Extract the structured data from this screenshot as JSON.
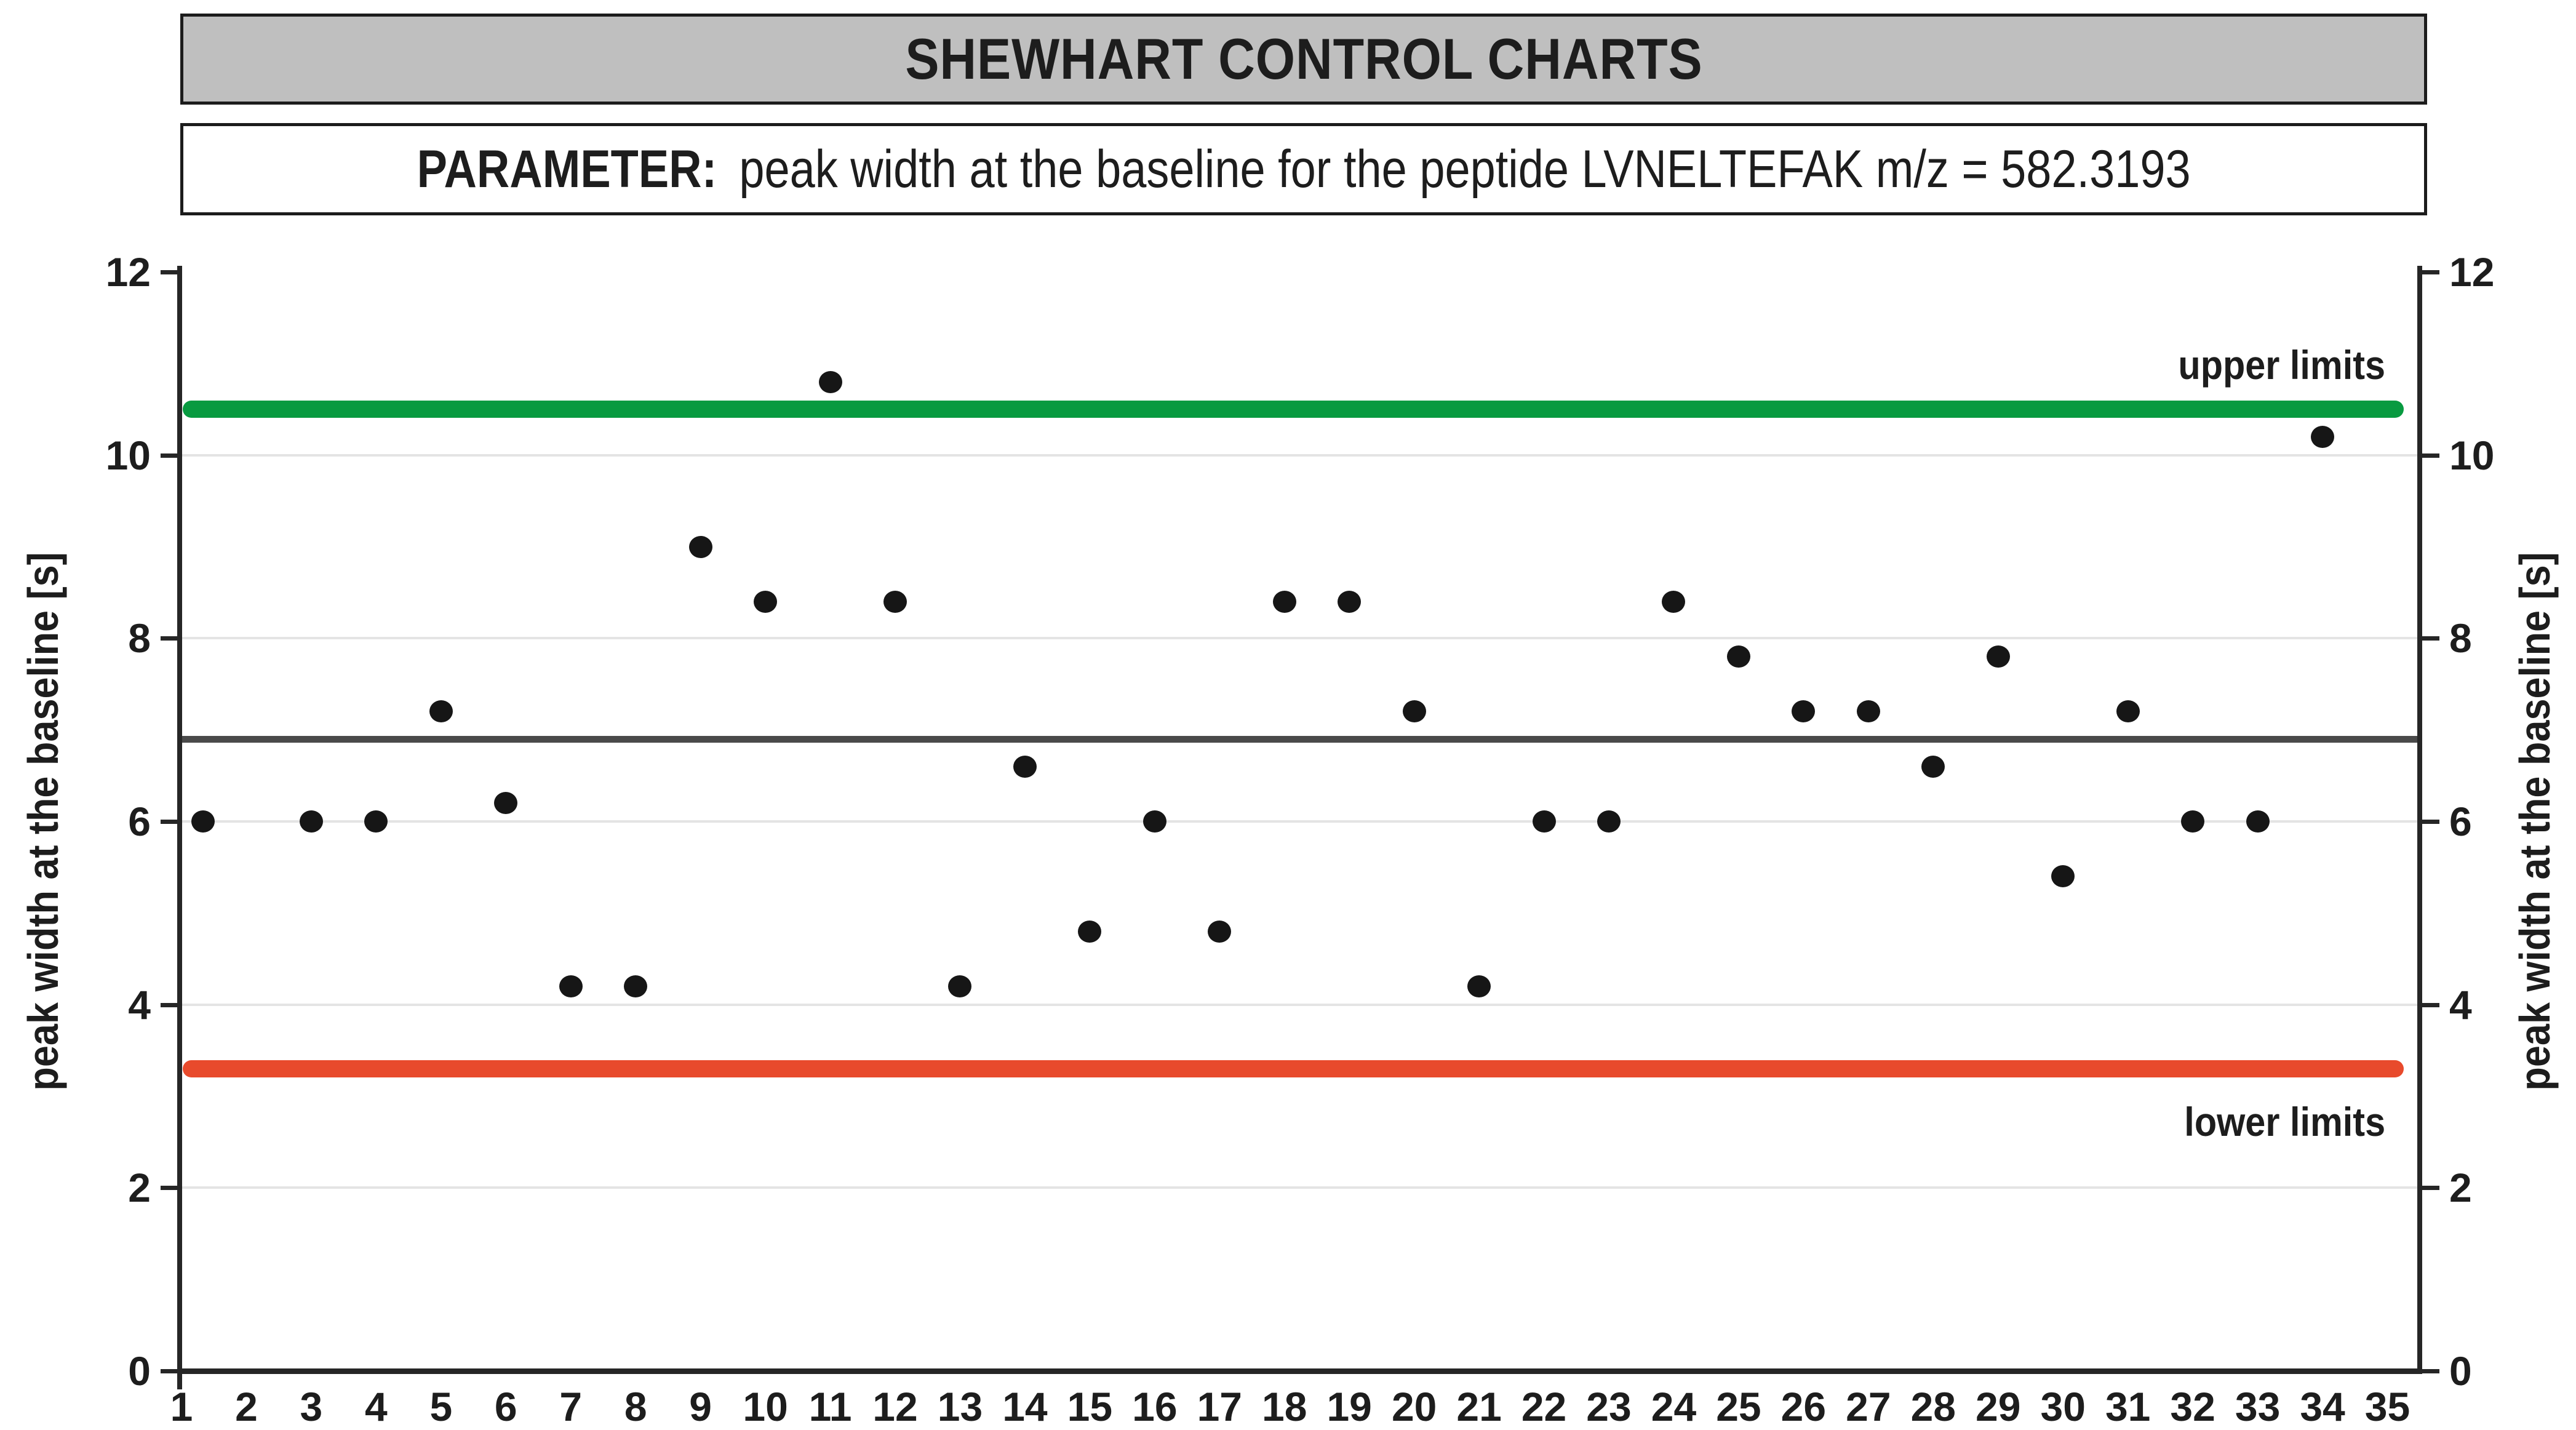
{
  "header": {
    "title": "SHEWHART CONTROL CHARTS",
    "parameter_label": "PARAMETER:",
    "parameter_text": "peak width at the baseline for the peptide LVNELTEFAK m/z = 582.3193"
  },
  "chart_data": {
    "type": "scatter",
    "title": "SHEWHART CONTROL CHARTS",
    "subtitle": "PARAMETER: peak width at the baseline for the peptide LVNELTEFAK m/z = 582.3193",
    "ylabel_left": "peak width at the baseline [s]",
    "ylabel_right": "peak width at the baseline [s]",
    "xlabel": "",
    "ylim": [
      0,
      12
    ],
    "xlim": [
      1,
      35.46
    ],
    "y_ticks": [
      0,
      2,
      4,
      6,
      8,
      10,
      12
    ],
    "y_gridlines": [
      2,
      4,
      6,
      8,
      10
    ],
    "x_ticks": [
      1,
      2,
      3,
      4,
      5,
      6,
      7,
      8,
      9,
      10,
      11,
      12,
      13,
      14,
      15,
      16,
      17,
      18,
      19,
      20,
      21,
      22,
      23,
      24,
      25,
      26,
      27,
      28,
      29,
      30,
      31,
      32,
      33,
      34,
      35
    ],
    "grid": "horizontal-only",
    "legend": "none",
    "marker_color": "#161616",
    "lines": {
      "upper": {
        "label": "upper limits",
        "value": 10.5,
        "color": "#089a40"
      },
      "center": {
        "value": 6.9,
        "color": "#4a4a4a"
      },
      "lower": {
        "label": "lower limits",
        "value": 3.3,
        "color": "#e84a2c"
      }
    },
    "missing_samples": [
      2,
      35
    ],
    "points": [
      {
        "sample": 1,
        "x": 1.33,
        "y": 6.0
      },
      {
        "sample": 3,
        "x": 3,
        "y": 6.0
      },
      {
        "sample": 4,
        "x": 4,
        "y": 6.0
      },
      {
        "sample": 5,
        "x": 5,
        "y": 7.2
      },
      {
        "sample": 6,
        "x": 6,
        "y": 6.2
      },
      {
        "sample": 7,
        "x": 7,
        "y": 4.2
      },
      {
        "sample": 8,
        "x": 8,
        "y": 4.2
      },
      {
        "sample": 9,
        "x": 9,
        "y": 9.0
      },
      {
        "sample": 10,
        "x": 10,
        "y": 8.4
      },
      {
        "sample": 11,
        "x": 11,
        "y": 10.8
      },
      {
        "sample": 12,
        "x": 12,
        "y": 8.4
      },
      {
        "sample": 13,
        "x": 13,
        "y": 4.2
      },
      {
        "sample": 14,
        "x": 14,
        "y": 6.6
      },
      {
        "sample": 15,
        "x": 15,
        "y": 4.8
      },
      {
        "sample": 16,
        "x": 16,
        "y": 6.0
      },
      {
        "sample": 17,
        "x": 17,
        "y": 4.8
      },
      {
        "sample": 18,
        "x": 18,
        "y": 8.4
      },
      {
        "sample": 19,
        "x": 19,
        "y": 8.4
      },
      {
        "sample": 20,
        "x": 20,
        "y": 7.2
      },
      {
        "sample": 21,
        "x": 21,
        "y": 4.2
      },
      {
        "sample": 22,
        "x": 22,
        "y": 6.0
      },
      {
        "sample": 23,
        "x": 23,
        "y": 6.0
      },
      {
        "sample": 24,
        "x": 24,
        "y": 8.4
      },
      {
        "sample": 25,
        "x": 25,
        "y": 7.8
      },
      {
        "sample": 26,
        "x": 26,
        "y": 7.2
      },
      {
        "sample": 27,
        "x": 27,
        "y": 7.2
      },
      {
        "sample": 28,
        "x": 28,
        "y": 6.6
      },
      {
        "sample": 29,
        "x": 29,
        "y": 7.8
      },
      {
        "sample": 30,
        "x": 30,
        "y": 5.4
      },
      {
        "sample": 31,
        "x": 31,
        "y": 7.2
      },
      {
        "sample": 32,
        "x": 32,
        "y": 6.0
      },
      {
        "sample": 33,
        "x": 33,
        "y": 6.0
      },
      {
        "sample": 34,
        "x": 34,
        "y": 10.2
      }
    ]
  }
}
